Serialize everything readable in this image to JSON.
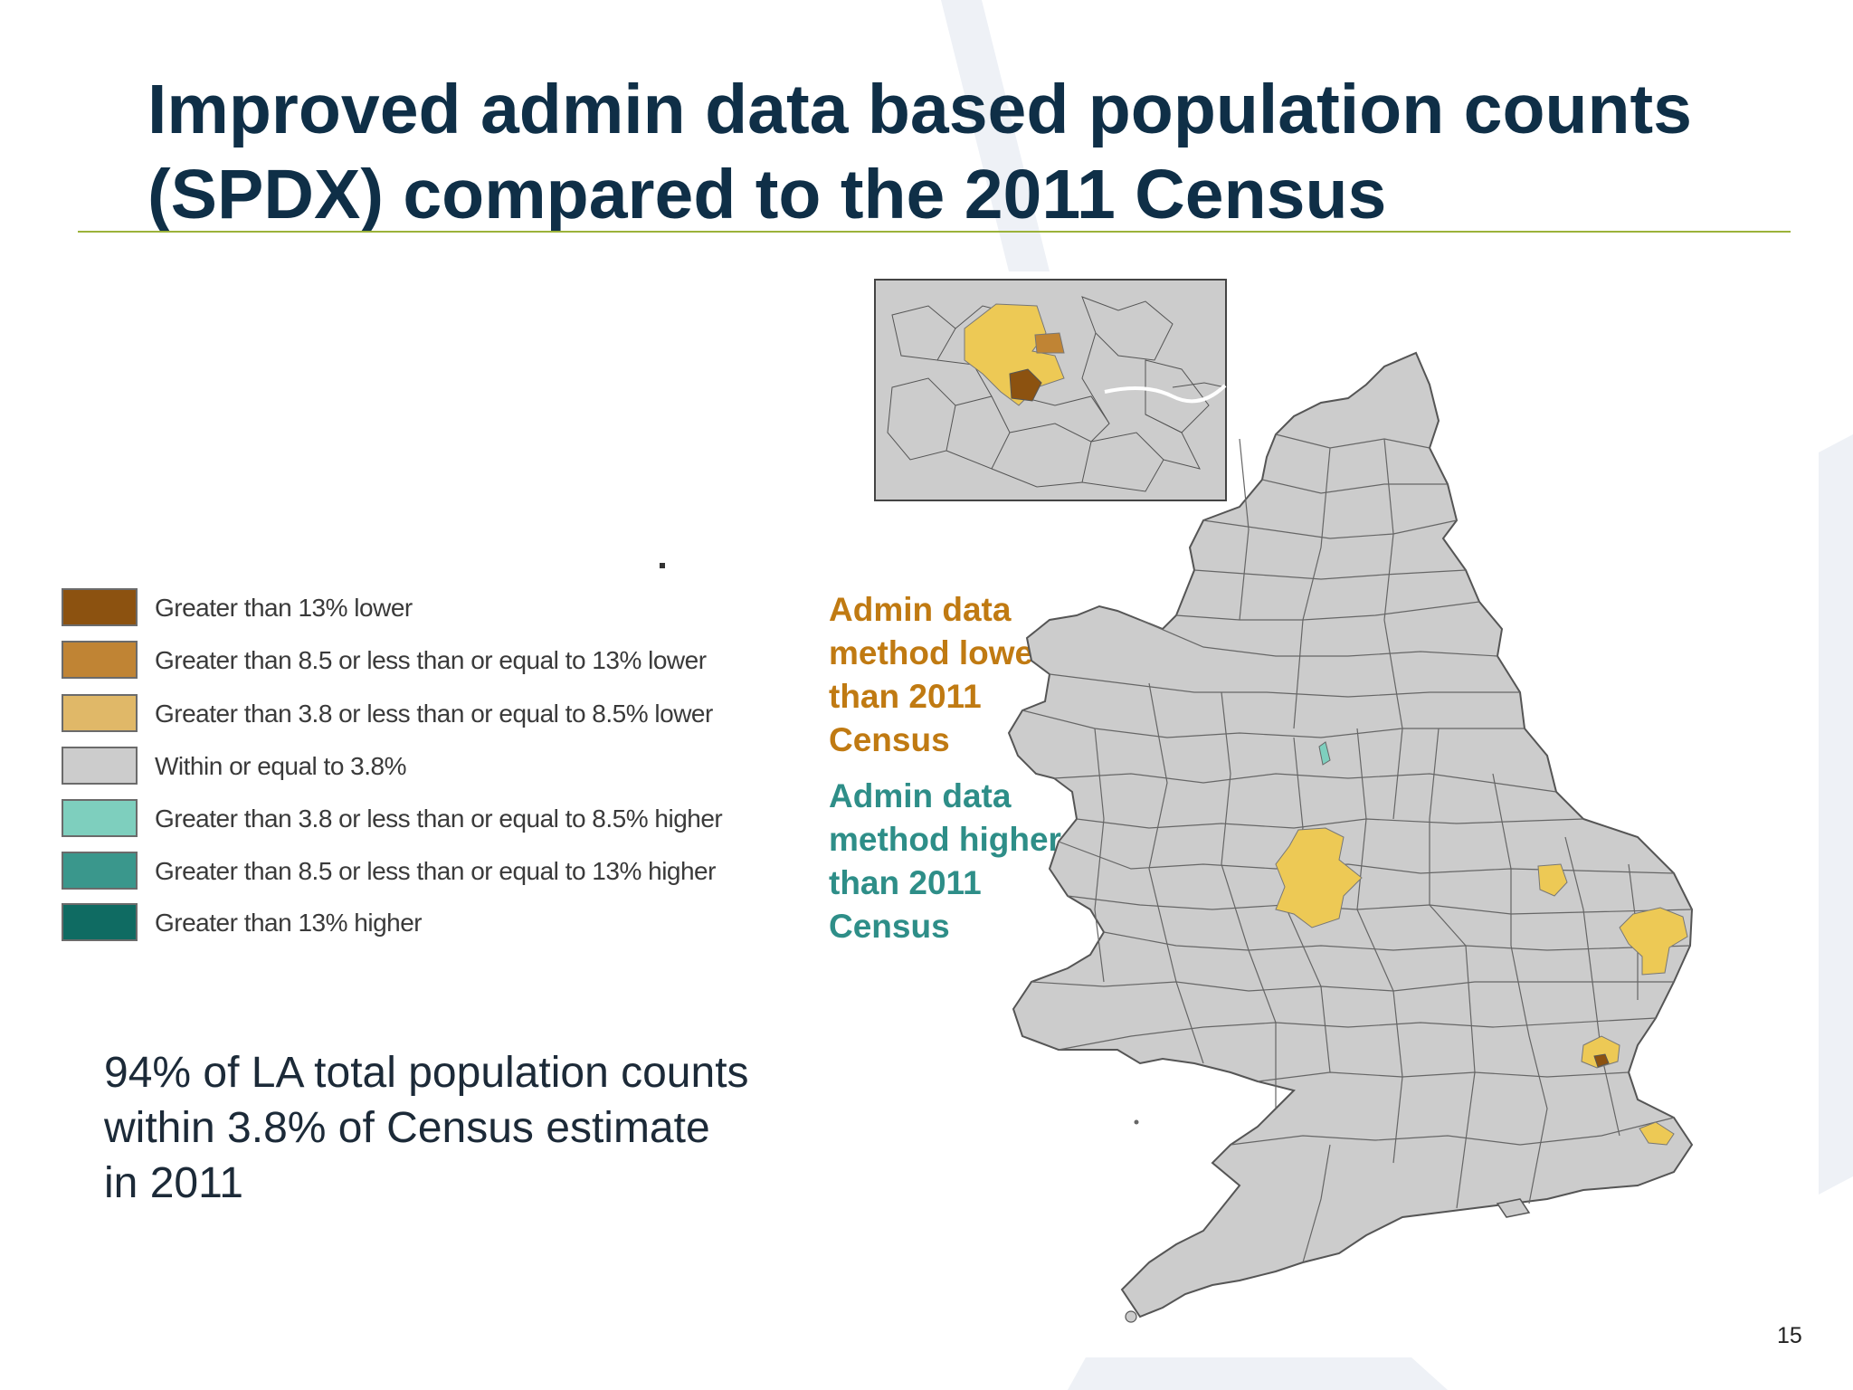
{
  "title": "Improved admin data based population counts (SPDX) compared to the 2011 Census",
  "legend": [
    {
      "label": "Greater than 13% lower",
      "color": "#8c5210"
    },
    {
      "label": "Greater than 8.5 or less than or equal to 13% lower",
      "color": "#c08434"
    },
    {
      "label": "Greater than 3.8 or less than or equal to 8.5% lower",
      "color": "#e0b868"
    },
    {
      "label": "Within or equal to 3.8%",
      "color": "#cccccc"
    },
    {
      "label": "Greater than 3.8 or less than or equal to 8.5% higher",
      "color": "#7ecfbe"
    },
    {
      "label": "Greater than 8.5 or less than or equal to 13% higher",
      "color": "#3a978c"
    },
    {
      "label": "Greater than 13% higher",
      "color": "#0f6b62"
    }
  ],
  "notes": {
    "lower": "Admin data method lower than 2011 Census",
    "higher": "Admin data method higher than 2011 Census"
  },
  "summary": "94% of LA total population counts within 3.8% of Census estimate in 2011",
  "page_number": "15",
  "colors": {
    "title": "#0f2f47",
    "rule": "#9bb23a",
    "region_fill": "#cccccc",
    "highlight": "#edc955",
    "lower_text": "#c07a12",
    "higher_text": "#2e8e88"
  }
}
